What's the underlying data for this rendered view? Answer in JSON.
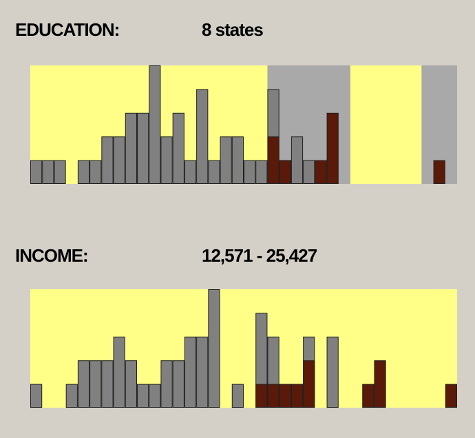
{
  "panels": {
    "education": {
      "title": "EDUCATION:",
      "value": "8 states"
    },
    "income": {
      "title": "INCOME:",
      "value": "12,571 - 25,427"
    }
  },
  "colors": {
    "background": "#d4d0c8",
    "plot_area": "#ffff88",
    "range_shade": "#a9a9a9",
    "bar": "#808080",
    "highlight": "#5a1a0a",
    "bar_edge": "#202020"
  },
  "chart_data": [
    {
      "type": "bar",
      "name": "education",
      "bins": 36,
      "ymax": 5,
      "values": [
        1,
        1,
        1,
        0,
        1,
        1,
        2,
        2,
        3,
        3,
        5,
        2,
        3,
        1,
        4,
        1,
        2,
        2,
        1,
        1,
        4,
        1,
        2,
        1,
        0,
        0,
        0,
        0,
        0,
        0,
        0,
        0,
        0,
        0,
        0,
        0
      ],
      "highlight_values": [
        0,
        0,
        0,
        0,
        0,
        0,
        0,
        0,
        0,
        0,
        0,
        0,
        0,
        0,
        0,
        0,
        0,
        0,
        0,
        0,
        2,
        1,
        0,
        0,
        1,
        3,
        0,
        0,
        0,
        0,
        0,
        0,
        0,
        0,
        1,
        0
      ],
      "shaded_bins": [
        [
          20,
          26
        ],
        [
          33,
          35
        ]
      ]
    },
    {
      "type": "bar",
      "name": "income",
      "bins": 36,
      "ymax": 5,
      "values": [
        1,
        0,
        0,
        1,
        2,
        2,
        2,
        3,
        2,
        1,
        1,
        2,
        2,
        3,
        3,
        5,
        0,
        1,
        0,
        4,
        3,
        1,
        1,
        3,
        0,
        3,
        0,
        0,
        0,
        0,
        0,
        0,
        0,
        0,
        0,
        0
      ],
      "highlight_values": [
        0,
        0,
        0,
        0,
        0,
        0,
        0,
        0,
        0,
        0,
        0,
        0,
        0,
        0,
        0,
        0,
        0,
        0,
        0,
        1,
        1,
        1,
        1,
        2,
        0,
        0,
        0,
        0,
        1,
        2,
        0,
        0,
        0,
        0,
        0,
        1
      ],
      "shaded_bins": []
    }
  ]
}
